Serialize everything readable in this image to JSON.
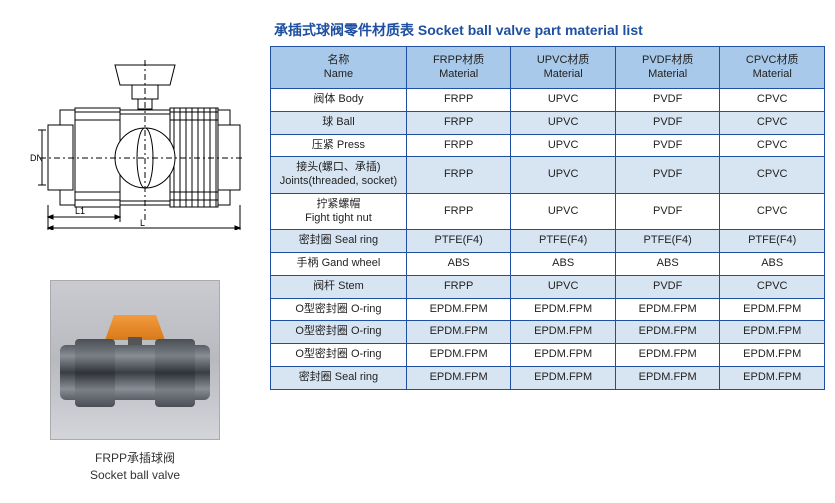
{
  "title": "承插式球阀零件材质表 Socket ball valve part material list",
  "header": {
    "name_cn": "名称",
    "name_en": "Name",
    "col1_cn": "FRPP材质",
    "col1_en": "Material",
    "col2_cn": "UPVC材质",
    "col2_en": "Material",
    "col3_cn": "PVDF材质",
    "col3_en": "Material",
    "col4_cn": "CPVC材质",
    "col4_en": "Material"
  },
  "rows": [
    {
      "name": "阀体 Body",
      "c1": "FRPP",
      "c2": "UPVC",
      "c3": "PVDF",
      "c4": "CPVC"
    },
    {
      "name": "球 Ball",
      "c1": "FRPP",
      "c2": "UPVC",
      "c3": "PVDF",
      "c4": "CPVC"
    },
    {
      "name": "压紧 Press",
      "c1": "FRPP",
      "c2": "UPVC",
      "c3": "PVDF",
      "c4": "CPVC"
    },
    {
      "name_cn": "接头(螺口、承插)",
      "name_en": "Joints(threaded, socket)",
      "c1": "FRPP",
      "c2": "UPVC",
      "c3": "PVDF",
      "c4": "CPVC"
    },
    {
      "name_cn": "拧紧螺帽",
      "name_en": "Fight tight nut",
      "c1": "FRPP",
      "c2": "UPVC",
      "c3": "PVDF",
      "c4": "CPVC"
    },
    {
      "name": "密封圈 Seal ring",
      "c1": "PTFE(F4)",
      "c2": "PTFE(F4)",
      "c3": "PTFE(F4)",
      "c4": "PTFE(F4)"
    },
    {
      "name": "手柄 Gand wheel",
      "c1": "ABS",
      "c2": "ABS",
      "c3": "ABS",
      "c4": "ABS"
    },
    {
      "name": "阀杆 Stem",
      "c1": "FRPP",
      "c2": "UPVC",
      "c3": "PVDF",
      "c4": "CPVC"
    },
    {
      "name": "O型密封圈 O-ring",
      "c1": "EPDM.FPM",
      "c2": "EPDM.FPM",
      "c3": "EPDM.FPM",
      "c4": "EPDM.FPM"
    },
    {
      "name": "O型密封圈 O-ring",
      "c1": "EPDM.FPM",
      "c2": "EPDM.FPM",
      "c3": "EPDM.FPM",
      "c4": "EPDM.FPM"
    },
    {
      "name": "O型密封圈 O-ring",
      "c1": "EPDM.FPM",
      "c2": "EPDM.FPM",
      "c3": "EPDM.FPM",
      "c4": "EPDM.FPM"
    },
    {
      "name": "密封圈 Seal ring",
      "c1": "EPDM.FPM",
      "c2": "EPDM.FPM",
      "c3": "EPDM.FPM",
      "c4": "EPDM.FPM"
    }
  ],
  "caption_cn": "FRPP承插球阀",
  "caption_en": "Socket ball valve",
  "diagram_labels": {
    "dn": "DN",
    "l1": "L1",
    "l": "L"
  },
  "colors": {
    "border": "#1e4fa0",
    "header_bg": "#a9c9ea",
    "row_alt": "#d7e5f3",
    "title": "#1e4fa0",
    "handle_fill": "#f29b3e"
  }
}
